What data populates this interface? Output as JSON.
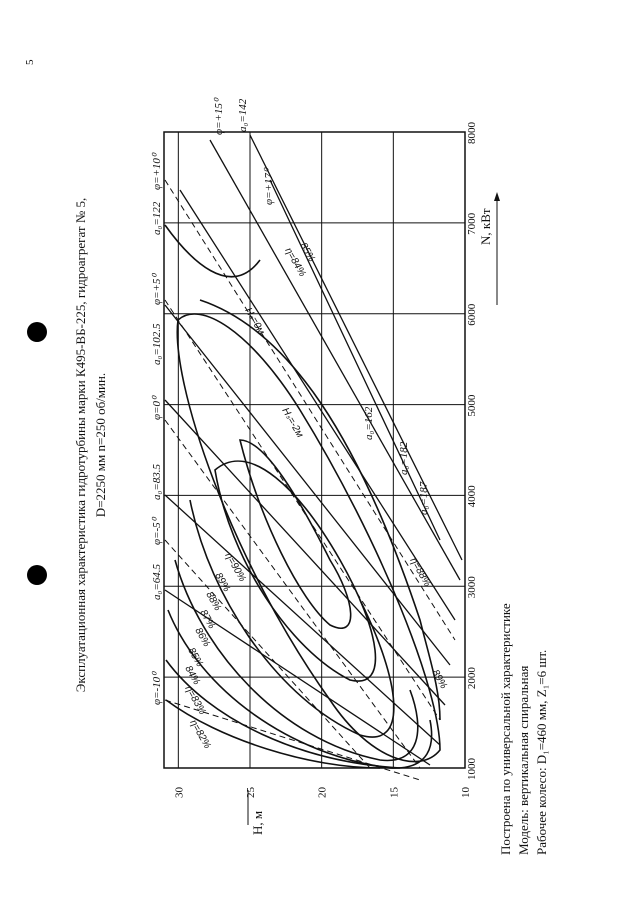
{
  "page_number": "5",
  "header": {
    "title": "Эксплуатационная характеристика гидротурбины марки К495-ВБ-225, гидроагрегат № 5,",
    "subtitle": "D=2250 мм  n=250 об/мин."
  },
  "chart": {
    "h_label": "H, м",
    "n_label": "N, кВт",
    "hlim": [
      10,
      31
    ],
    "hticks": [
      10,
      15,
      20,
      25,
      30
    ],
    "nlim": [
      1000,
      8000
    ],
    "nticks": [
      1000,
      2000,
      3000,
      4000,
      5000,
      6000,
      7000,
      8000
    ],
    "annotations": [
      "φ=-10⁰",
      "a₀=64.5",
      "φ=-5⁰",
      "a₀=83.5",
      "φ=0⁰",
      "a₀=102.5",
      "φ=+5⁰",
      "a₀=122",
      "φ=+10⁰",
      "φ=+15⁰",
      "a₀=142",
      "φ=+17⁰",
      "a₀=162",
      "a₀=182",
      "a₀=187",
      "η=82%",
      "η=83%",
      "84%",
      "85%",
      "86%",
      "87%",
      "88%",
      "89%",
      "η=90%",
      "89%",
      "η=88%",
      "η=84%",
      "85%",
      "Hₛ=0м",
      "Hₛ=-2м"
    ]
  },
  "notes": [
    "Построена по универсальной характеристике",
    "Модель: вертикальная спиральная",
    "Рабочее колесо: D₁=460 мм, Z₁=6 шт."
  ]
}
